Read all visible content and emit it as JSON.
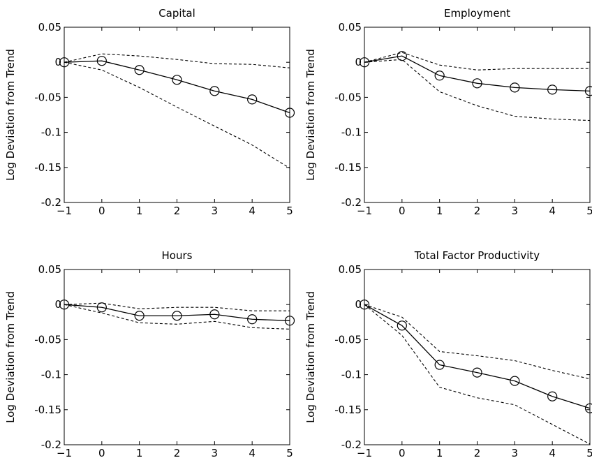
{
  "chart_data": [
    {
      "type": "line",
      "title": "Capital",
      "xlabel": "",
      "ylabel": "Log Deviation from Trend",
      "xlim": [
        -1,
        5
      ],
      "ylim": [
        -0.2,
        0.05
      ],
      "xticks": [
        -1,
        0,
        1,
        2,
        3,
        4,
        5
      ],
      "xtick_labels": [
        "−1",
        "0",
        "1",
        "2",
        "3",
        "4",
        "5"
      ],
      "yticks": [
        0.05,
        0,
        -0.05,
        -0.1,
        -0.15,
        -0.2
      ],
      "ytick_labels": [
        "0.05",
        "0",
        "-0.05",
        "-0.1",
        "-0.15",
        "-0.2"
      ],
      "grid": false,
      "x": [
        -1,
        0,
        1,
        2,
        3,
        4,
        5
      ],
      "series": [
        {
          "values": [
            0,
            0.002,
            -0.011,
            -0.025,
            -0.041,
            -0.053,
            -0.072
          ],
          "style": "solid",
          "marker": "circle"
        },
        {
          "values": [
            0,
            0.012,
            0.009,
            0.004,
            -0.002,
            -0.003,
            -0.008
          ],
          "style": "dashed",
          "marker": "none"
        },
        {
          "values": [
            0,
            -0.011,
            -0.036,
            -0.064,
            -0.091,
            -0.118,
            -0.151
          ],
          "style": "dashed",
          "marker": "none"
        }
      ]
    },
    {
      "type": "line",
      "title": "Employment",
      "xlabel": "",
      "ylabel": "Log Deviation from Trend",
      "xlim": [
        -1,
        5
      ],
      "ylim": [
        -0.2,
        0.05
      ],
      "xticks": [
        -1,
        0,
        1,
        2,
        3,
        4,
        5
      ],
      "xtick_labels": [
        "−1",
        "0",
        "1",
        "2",
        "3",
        "4",
        "5"
      ],
      "yticks": [
        0.05,
        0,
        -0.05,
        -0.1,
        -0.15,
        -0.2
      ],
      "ytick_labels": [
        "0.05",
        "0",
        "-0.05",
        "-0.1",
        "-0.15",
        "-0.2"
      ],
      "grid": false,
      "x": [
        -1,
        0,
        1,
        2,
        3,
        4,
        5
      ],
      "series": [
        {
          "values": [
            0,
            0.009,
            -0.019,
            -0.03,
            -0.036,
            -0.039,
            -0.041
          ],
          "style": "solid",
          "marker": "circle"
        },
        {
          "values": [
            0,
            0.014,
            -0.004,
            -0.011,
            -0.009,
            -0.009,
            -0.009
          ],
          "style": "dashed",
          "marker": "none"
        },
        {
          "values": [
            0,
            0.004,
            -0.042,
            -0.062,
            -0.077,
            -0.081,
            -0.083
          ],
          "style": "dashed",
          "marker": "none"
        }
      ]
    },
    {
      "type": "line",
      "title": "Hours",
      "xlabel": "",
      "ylabel": "Log Deviation from Trend",
      "xlim": [
        -1,
        5
      ],
      "ylim": [
        -0.2,
        0.05
      ],
      "xticks": [
        -1,
        0,
        1,
        2,
        3,
        4,
        5
      ],
      "xtick_labels": [
        "−1",
        "0",
        "1",
        "2",
        "3",
        "4",
        "5"
      ],
      "yticks": [
        0.05,
        0,
        -0.05,
        -0.1,
        -0.15,
        -0.2
      ],
      "ytick_labels": [
        "0.05",
        "0",
        "-0.05",
        "-0.1",
        "-0.15",
        "-0.2"
      ],
      "grid": false,
      "x": [
        -1,
        0,
        1,
        2,
        3,
        4,
        5
      ],
      "series": [
        {
          "values": [
            0,
            -0.004,
            -0.016,
            -0.016,
            -0.014,
            -0.021,
            -0.023
          ],
          "style": "solid",
          "marker": "circle"
        },
        {
          "values": [
            0,
            0.002,
            -0.006,
            -0.004,
            -0.004,
            -0.009,
            -0.009
          ],
          "style": "dashed",
          "marker": "none"
        },
        {
          "values": [
            0,
            -0.012,
            -0.026,
            -0.028,
            -0.024,
            -0.033,
            -0.035
          ],
          "style": "dashed",
          "marker": "none"
        }
      ]
    },
    {
      "type": "line",
      "title": "Total Factor Productivity",
      "xlabel": "",
      "ylabel": "Log Deviation from Trend",
      "xlim": [
        -1,
        5
      ],
      "ylim": [
        -0.2,
        0.05
      ],
      "xticks": [
        -1,
        0,
        1,
        2,
        3,
        4,
        5
      ],
      "xtick_labels": [
        "−1",
        "0",
        "1",
        "2",
        "3",
        "4",
        "5"
      ],
      "yticks": [
        0.05,
        0,
        -0.05,
        -0.1,
        -0.15,
        -0.2
      ],
      "ytick_labels": [
        "0.05",
        "0",
        "-0.05",
        "-0.1",
        "-0.15",
        "-0.2"
      ],
      "grid": false,
      "x": [
        -1,
        0,
        1,
        2,
        3,
        4,
        5
      ],
      "series": [
        {
          "values": [
            0,
            -0.03,
            -0.086,
            -0.097,
            -0.109,
            -0.131,
            -0.148
          ],
          "style": "solid",
          "marker": "circle"
        },
        {
          "values": [
            0,
            -0.018,
            -0.067,
            -0.073,
            -0.08,
            -0.094,
            -0.106
          ],
          "style": "dashed",
          "marker": "none"
        },
        {
          "values": [
            0,
            -0.044,
            -0.118,
            -0.133,
            -0.143,
            -0.171,
            -0.199
          ],
          "style": "dashed",
          "marker": "none"
        }
      ]
    }
  ]
}
